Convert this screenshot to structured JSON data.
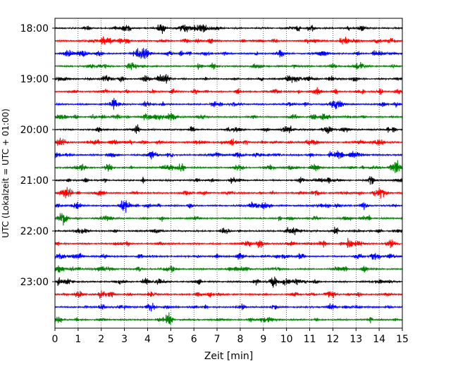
{
  "chart_data": {
    "type": "line",
    "title": "",
    "xlabel": "Zeit  [min]",
    "ylabel": "UTC (Lokalzeit = UTC + 01:00)",
    "xlim": [
      0,
      15
    ],
    "x_ticks": [
      0,
      1,
      2,
      3,
      4,
      5,
      6,
      7,
      8,
      9,
      10,
      11,
      12,
      13,
      14,
      15
    ],
    "y_tick_labels": [
      "18:00",
      "19:00",
      "20:00",
      "21:00",
      "22:00",
      "23:00"
    ],
    "trace_interval_minutes": 15,
    "traces_per_hour": 4,
    "grid": "vertical dotted at each minute",
    "trace_colors": [
      "#000000",
      "#ff0000",
      "#0000ff",
      "#008000"
    ],
    "series": [
      {
        "start": "18:00"
      },
      {
        "start": "18:15"
      },
      {
        "start": "18:30"
      },
      {
        "start": "18:45"
      },
      {
        "start": "19:00"
      },
      {
        "start": "19:15"
      },
      {
        "start": "19:30"
      },
      {
        "start": "19:45"
      },
      {
        "start": "20:00"
      },
      {
        "start": "20:15"
      },
      {
        "start": "20:30"
      },
      {
        "start": "20:45"
      },
      {
        "start": "21:00"
      },
      {
        "start": "21:15"
      },
      {
        "start": "21:30"
      },
      {
        "start": "21:45"
      },
      {
        "start": "22:00"
      },
      {
        "start": "22:15"
      },
      {
        "start": "22:30"
      },
      {
        "start": "22:45"
      },
      {
        "start": "23:00"
      },
      {
        "start": "23:15"
      },
      {
        "start": "23:30"
      },
      {
        "start": "23:45"
      }
    ]
  }
}
